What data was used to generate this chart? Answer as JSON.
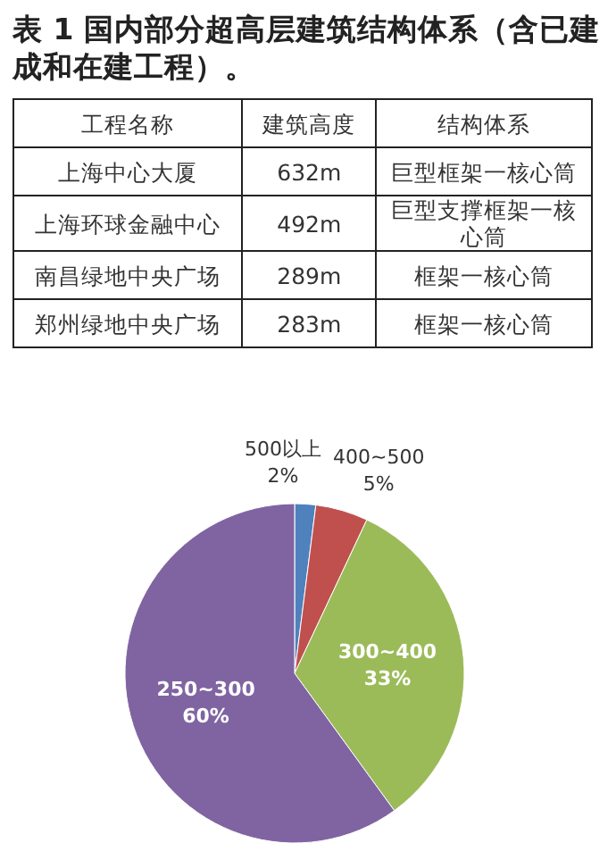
{
  "chart_data": [
    {
      "type": "other",
      "title": "表 1 国内部分超高层建筑结构体系（含已建成和在建工程）。",
      "annotations": [
        "工程名称",
        "建筑高度",
        "结构体系",
        "上海中心大厦",
        "632m",
        "巨型框架一核心筒",
        "上海环球金融中心",
        "492m",
        "巨型支撑框架一核心筒",
        "南昌绿地中央广场",
        "289m",
        "框架一核心筒",
        "郑州绿地中央广场",
        "283m",
        "框架一核心筒"
      ]
    },
    {
      "type": "pie",
      "categories": [
        "500以上",
        "400~500",
        "300~400",
        "250~300"
      ],
      "values": [
        2,
        5,
        33,
        60
      ],
      "colors": [
        "#4f81bd",
        "#c0504d",
        "#9bbb59",
        "#8064a2"
      ],
      "value_labels": [
        "2%",
        "5%",
        "33%",
        "60%"
      ]
    }
  ]
}
